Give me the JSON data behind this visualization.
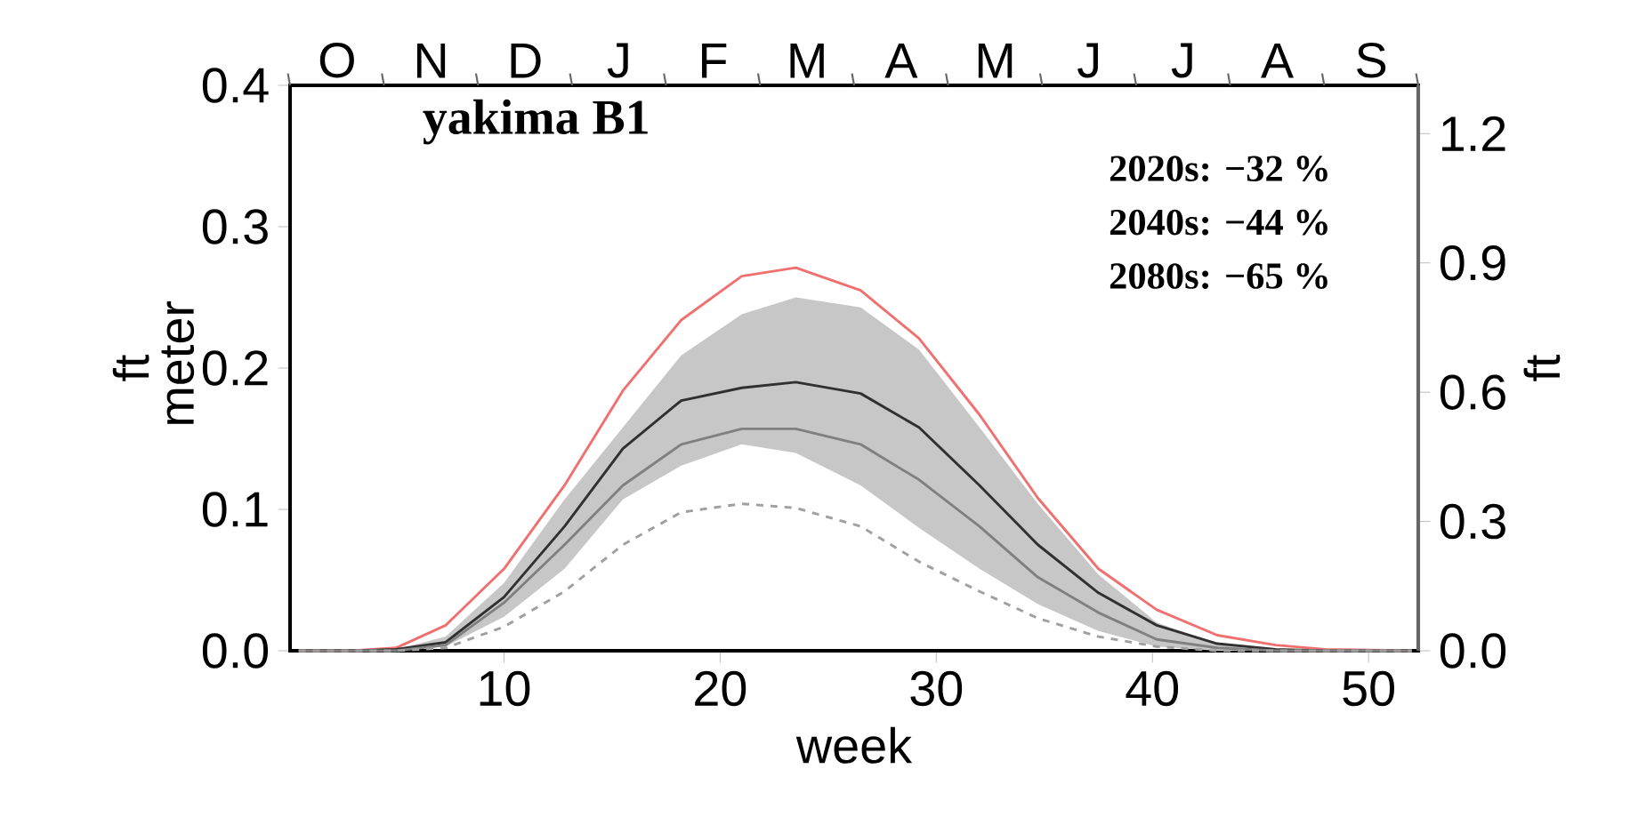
{
  "chart_data": {
    "type": "line",
    "title": "yakima B1",
    "xlabel": "week",
    "ylabel": "ft meter",
    "y2label": "ft",
    "annotations": [
      "2020s: −32 %",
      "2040s: −44 %",
      "2080s: −65 %",
      "O",
      "N",
      "D",
      "J",
      "F",
      "M",
      "A",
      "M",
      "J",
      "J",
      "A",
      "S"
    ],
    "x": [
      0.5,
      3,
      5,
      7.3,
      10,
      12.8,
      15.5,
      18.2,
      21,
      23.5,
      26.5,
      29.2,
      32,
      34.7,
      37.5,
      40.2,
      43,
      45.7,
      48,
      52
    ],
    "xlim": [
      0.1,
      52.3
    ],
    "xticks": [
      10,
      20,
      30,
      40,
      50
    ],
    "ylim": [
      0,
      0.4
    ],
    "yticks": [
      {
        "value": 0,
        "label": "0.0"
      },
      {
        "value": 0.1,
        "label": "0.1"
      },
      {
        "value": 0.2,
        "label": "0.2"
      },
      {
        "value": 0.3,
        "label": "0.3"
      },
      {
        "value": 0.4,
        "label": "0.4"
      }
    ],
    "y2lim": [
      0,
      1.312
    ],
    "y2ticks": [
      {
        "value": 0,
        "label": "0.0"
      },
      {
        "value": 0.3,
        "label": "0.3"
      },
      {
        "value": 0.6,
        "label": "0.6"
      },
      {
        "value": 0.9,
        "label": "0.9"
      },
      {
        "value": 1.2,
        "label": "1.2"
      }
    ],
    "grid": false,
    "series": [
      {
        "color": "#f07070",
        "values": [
          0,
          0,
          0.002,
          0.018,
          0.058,
          0.117,
          0.184,
          0.234,
          0.265,
          0.271,
          0.255,
          0.221,
          0.167,
          0.108,
          0.058,
          0.029,
          0.011,
          0.004,
          0.001,
          0
        ]
      },
      {
        "color": "#303030",
        "values": [
          0,
          0,
          0.001,
          0.006,
          0.038,
          0.088,
          0.143,
          0.177,
          0.186,
          0.19,
          0.182,
          0.158,
          0.117,
          0.075,
          0.041,
          0.018,
          0.005,
          0.001,
          0,
          0
        ],
        "lower": [
          0,
          0,
          0,
          0.003,
          0.024,
          0.058,
          0.107,
          0.131,
          0.146,
          0.14,
          0.117,
          0.087,
          0.058,
          0.033,
          0.014,
          0.003,
          0,
          0,
          0,
          0
        ],
        "upper": [
          0,
          0,
          0.001,
          0.01,
          0.048,
          0.107,
          0.158,
          0.209,
          0.238,
          0.25,
          0.243,
          0.213,
          0.158,
          0.104,
          0.054,
          0.02,
          0.005,
          0.001,
          0,
          0
        ]
      },
      {
        "color": "#808080",
        "values": [
          0,
          0,
          0,
          0.004,
          0.034,
          0.075,
          0.117,
          0.146,
          0.157,
          0.157,
          0.146,
          0.121,
          0.088,
          0.052,
          0.027,
          0.008,
          0.002,
          0,
          0,
          0
        ]
      },
      {
        "color": "#a0a0a0",
        "line_style": "dashed",
        "values": [
          0,
          0,
          0,
          0.002,
          0.017,
          0.042,
          0.075,
          0.098,
          0.104,
          0.101,
          0.088,
          0.063,
          0.042,
          0.023,
          0.01,
          0.003,
          0,
          0,
          0,
          0
        ]
      }
    ]
  }
}
